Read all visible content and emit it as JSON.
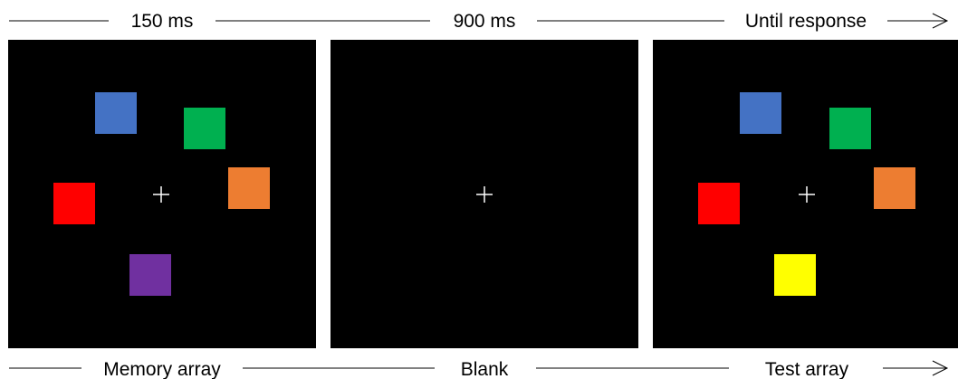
{
  "timing": {
    "memory": "150 ms",
    "blank": "900 ms",
    "test": "Until response"
  },
  "phases": {
    "memory": "Memory array",
    "blank": "Blank",
    "test": "Test array"
  },
  "colors": {
    "background": "#000000",
    "fixation": "#ffffff",
    "blue": "#4472c4",
    "green": "#00b050",
    "orange": "#ed7d31",
    "red": "#ff0000",
    "purple": "#7030a0",
    "yellow": "#ffff00"
  },
  "memory_array_squares": [
    "blue",
    "green",
    "orange",
    "red",
    "purple"
  ],
  "test_array_squares": [
    "blue",
    "green",
    "orange",
    "red",
    "yellow"
  ]
}
